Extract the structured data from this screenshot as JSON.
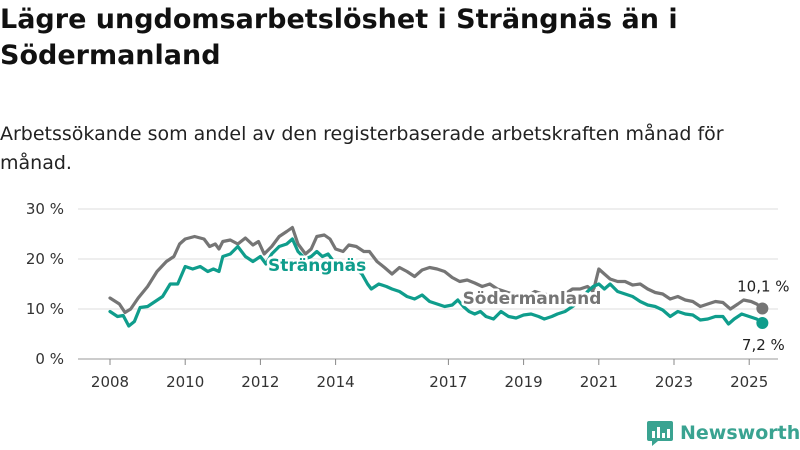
{
  "header": {
    "title": "Lägre ungdomsarbetslöshet i Strängnäs än i Södermanland",
    "subtitle": "Arbetssökande som andel av den registerbaserade arbetskraften månad för månad."
  },
  "brand": {
    "name": "Newsworthy",
    "icon": "bar-chart-icon",
    "color": "#3aa391"
  },
  "chart_data": {
    "type": "line",
    "title": "Lägre ungdomsarbetslöshet i Strängnäs än i Södermanland",
    "subtitle": "Arbetssökande som andel av den registerbaserade arbetskraften månad för månad.",
    "xlabel": "",
    "ylabel": "",
    "ylim": [
      0,
      30
    ],
    "xlim": [
      2008.0,
      2025.5
    ],
    "grid": "horizontal",
    "legend": "direct labels on lines",
    "y_ticks": [
      {
        "value": 0,
        "label": "0 %"
      },
      {
        "value": 10,
        "label": "10 %"
      },
      {
        "value": 20,
        "label": "20 %"
      },
      {
        "value": 30,
        "label": "30 %"
      }
    ],
    "x_ticks": [
      {
        "value": 2008,
        "label": "2008"
      },
      {
        "value": 2010,
        "label": "2010"
      },
      {
        "value": 2012,
        "label": "2012"
      },
      {
        "value": 2014,
        "label": "2014"
      },
      {
        "value": 2017,
        "label": "2017"
      },
      {
        "value": 2019,
        "label": "2019"
      },
      {
        "value": 2021,
        "label": "2021"
      },
      {
        "value": 2023,
        "label": "2023"
      },
      {
        "value": 2025,
        "label": "2025"
      }
    ],
    "series": [
      {
        "name": "Södermanland",
        "color": "#757575",
        "end_label": "10,1 %",
        "points": [
          [
            2008.0,
            12.2
          ],
          [
            2008.25,
            11.0
          ],
          [
            2008.4,
            9.3
          ],
          [
            2008.55,
            10.0
          ],
          [
            2008.75,
            12.2
          ],
          [
            2009.0,
            14.5
          ],
          [
            2009.25,
            17.5
          ],
          [
            2009.5,
            19.5
          ],
          [
            2009.7,
            20.5
          ],
          [
            2009.85,
            23.0
          ],
          [
            2010.0,
            24.0
          ],
          [
            2010.25,
            24.5
          ],
          [
            2010.5,
            24.0
          ],
          [
            2010.65,
            22.5
          ],
          [
            2010.8,
            23.0
          ],
          [
            2010.9,
            22.0
          ],
          [
            2011.0,
            23.5
          ],
          [
            2011.2,
            23.8
          ],
          [
            2011.4,
            23.0
          ],
          [
            2011.6,
            24.2
          ],
          [
            2011.8,
            22.8
          ],
          [
            2011.95,
            23.5
          ],
          [
            2012.1,
            21.0
          ],
          [
            2012.3,
            22.5
          ],
          [
            2012.5,
            24.5
          ],
          [
            2012.7,
            25.5
          ],
          [
            2012.85,
            26.3
          ],
          [
            2013.0,
            23.0
          ],
          [
            2013.2,
            21.0
          ],
          [
            2013.35,
            22.0
          ],
          [
            2013.5,
            24.5
          ],
          [
            2013.7,
            24.8
          ],
          [
            2013.85,
            24.0
          ],
          [
            2014.0,
            22.0
          ],
          [
            2014.2,
            21.5
          ],
          [
            2014.35,
            22.8
          ],
          [
            2014.55,
            22.5
          ],
          [
            2014.75,
            21.5
          ],
          [
            2014.9,
            21.5
          ],
          [
            2015.1,
            19.5
          ],
          [
            2015.3,
            18.3
          ],
          [
            2015.5,
            17.0
          ],
          [
            2015.7,
            18.3
          ],
          [
            2015.9,
            17.5
          ],
          [
            2016.1,
            16.5
          ],
          [
            2016.3,
            17.8
          ],
          [
            2016.5,
            18.3
          ],
          [
            2016.7,
            18.0
          ],
          [
            2016.9,
            17.5
          ],
          [
            2017.1,
            16.3
          ],
          [
            2017.3,
            15.5
          ],
          [
            2017.5,
            15.8
          ],
          [
            2017.7,
            15.2
          ],
          [
            2017.9,
            14.5
          ],
          [
            2018.1,
            15.0
          ],
          [
            2018.3,
            14.0
          ],
          [
            2018.5,
            13.5
          ],
          [
            2018.7,
            13.0
          ],
          [
            2018.9,
            12.5
          ],
          [
            2019.1,
            12.5
          ],
          [
            2019.3,
            13.5
          ],
          [
            2019.5,
            13.0
          ],
          [
            2019.7,
            12.8
          ],
          [
            2019.9,
            12.5
          ],
          [
            2020.1,
            13.0
          ],
          [
            2020.3,
            14.0
          ],
          [
            2020.5,
            14.0
          ],
          [
            2020.7,
            14.5
          ],
          [
            2020.85,
            13.5
          ],
          [
            2021.0,
            18.0
          ],
          [
            2021.15,
            17.0
          ],
          [
            2021.3,
            16.0
          ],
          [
            2021.5,
            15.5
          ],
          [
            2021.7,
            15.5
          ],
          [
            2021.9,
            14.8
          ],
          [
            2022.1,
            15.0
          ],
          [
            2022.3,
            14.0
          ],
          [
            2022.5,
            13.3
          ],
          [
            2022.7,
            13.0
          ],
          [
            2022.9,
            12.0
          ],
          [
            2023.1,
            12.5
          ],
          [
            2023.3,
            11.8
          ],
          [
            2023.5,
            11.5
          ],
          [
            2023.7,
            10.5
          ],
          [
            2023.9,
            11.0
          ],
          [
            2024.1,
            11.5
          ],
          [
            2024.3,
            11.3
          ],
          [
            2024.5,
            10.0
          ],
          [
            2024.7,
            11.0
          ],
          [
            2024.85,
            11.8
          ],
          [
            2025.05,
            11.5
          ],
          [
            2025.2,
            11.0
          ],
          [
            2025.35,
            10.1
          ]
        ]
      },
      {
        "name": "Strängnäs",
        "color": "#0f9d8c",
        "end_label": "7,2 %",
        "points": [
          [
            2008.0,
            9.5
          ],
          [
            2008.2,
            8.5
          ],
          [
            2008.35,
            8.7
          ],
          [
            2008.5,
            6.6
          ],
          [
            2008.65,
            7.5
          ],
          [
            2008.8,
            10.3
          ],
          [
            2009.0,
            10.5
          ],
          [
            2009.2,
            11.5
          ],
          [
            2009.4,
            12.5
          ],
          [
            2009.6,
            15.0
          ],
          [
            2009.8,
            15.0
          ],
          [
            2010.0,
            18.5
          ],
          [
            2010.2,
            18.0
          ],
          [
            2010.4,
            18.5
          ],
          [
            2010.6,
            17.5
          ],
          [
            2010.75,
            18.0
          ],
          [
            2010.9,
            17.5
          ],
          [
            2011.0,
            20.5
          ],
          [
            2011.2,
            21.0
          ],
          [
            2011.4,
            22.5
          ],
          [
            2011.6,
            20.5
          ],
          [
            2011.8,
            19.5
          ],
          [
            2012.0,
            20.5
          ],
          [
            2012.15,
            19.0
          ],
          [
            2012.3,
            21.0
          ],
          [
            2012.5,
            22.5
          ],
          [
            2012.7,
            23.0
          ],
          [
            2012.85,
            24.0
          ],
          [
            2013.0,
            21.5
          ],
          [
            2013.2,
            20.0
          ],
          [
            2013.35,
            20.5
          ],
          [
            2013.5,
            21.5
          ],
          [
            2013.65,
            20.5
          ],
          [
            2013.8,
            21.0
          ],
          [
            2014.0,
            19.0
          ],
          [
            2014.2,
            18.0
          ],
          [
            2014.4,
            17.5
          ],
          [
            2014.55,
            18.0
          ],
          [
            2014.7,
            17.0
          ],
          [
            2014.85,
            15.0
          ],
          [
            2014.95,
            14.0
          ],
          [
            2015.15,
            15.0
          ],
          [
            2015.35,
            14.5
          ],
          [
            2015.5,
            14.0
          ],
          [
            2015.7,
            13.5
          ],
          [
            2015.9,
            12.5
          ],
          [
            2016.1,
            12.0
          ],
          [
            2016.3,
            12.8
          ],
          [
            2016.5,
            11.5
          ],
          [
            2016.7,
            11.0
          ],
          [
            2016.9,
            10.5
          ],
          [
            2017.1,
            10.8
          ],
          [
            2017.25,
            11.8
          ],
          [
            2017.4,
            10.5
          ],
          [
            2017.55,
            9.5
          ],
          [
            2017.7,
            9.0
          ],
          [
            2017.85,
            9.5
          ],
          [
            2018.0,
            8.5
          ],
          [
            2018.2,
            8.0
          ],
          [
            2018.4,
            9.5
          ],
          [
            2018.6,
            8.5
          ],
          [
            2018.8,
            8.2
          ],
          [
            2019.0,
            8.8
          ],
          [
            2019.2,
            9.0
          ],
          [
            2019.4,
            8.5
          ],
          [
            2019.55,
            8.0
          ],
          [
            2019.75,
            8.5
          ],
          [
            2019.9,
            9.0
          ],
          [
            2020.1,
            9.5
          ],
          [
            2020.3,
            10.5
          ],
          [
            2020.5,
            11.5
          ],
          [
            2020.7,
            13.5
          ],
          [
            2020.85,
            14.5
          ],
          [
            2021.0,
            15.0
          ],
          [
            2021.15,
            14.0
          ],
          [
            2021.3,
            15.0
          ],
          [
            2021.5,
            13.5
          ],
          [
            2021.7,
            13.0
          ],
          [
            2021.9,
            12.5
          ],
          [
            2022.1,
            11.5
          ],
          [
            2022.3,
            10.8
          ],
          [
            2022.5,
            10.5
          ],
          [
            2022.7,
            9.8
          ],
          [
            2022.9,
            8.5
          ],
          [
            2023.1,
            9.5
          ],
          [
            2023.3,
            9.0
          ],
          [
            2023.5,
            8.8
          ],
          [
            2023.7,
            7.8
          ],
          [
            2023.9,
            8.0
          ],
          [
            2024.1,
            8.5
          ],
          [
            2024.3,
            8.5
          ],
          [
            2024.45,
            7.0
          ],
          [
            2024.6,
            8.0
          ],
          [
            2024.8,
            9.0
          ],
          [
            2025.0,
            8.5
          ],
          [
            2025.2,
            8.0
          ],
          [
            2025.35,
            7.2
          ]
        ]
      }
    ]
  }
}
